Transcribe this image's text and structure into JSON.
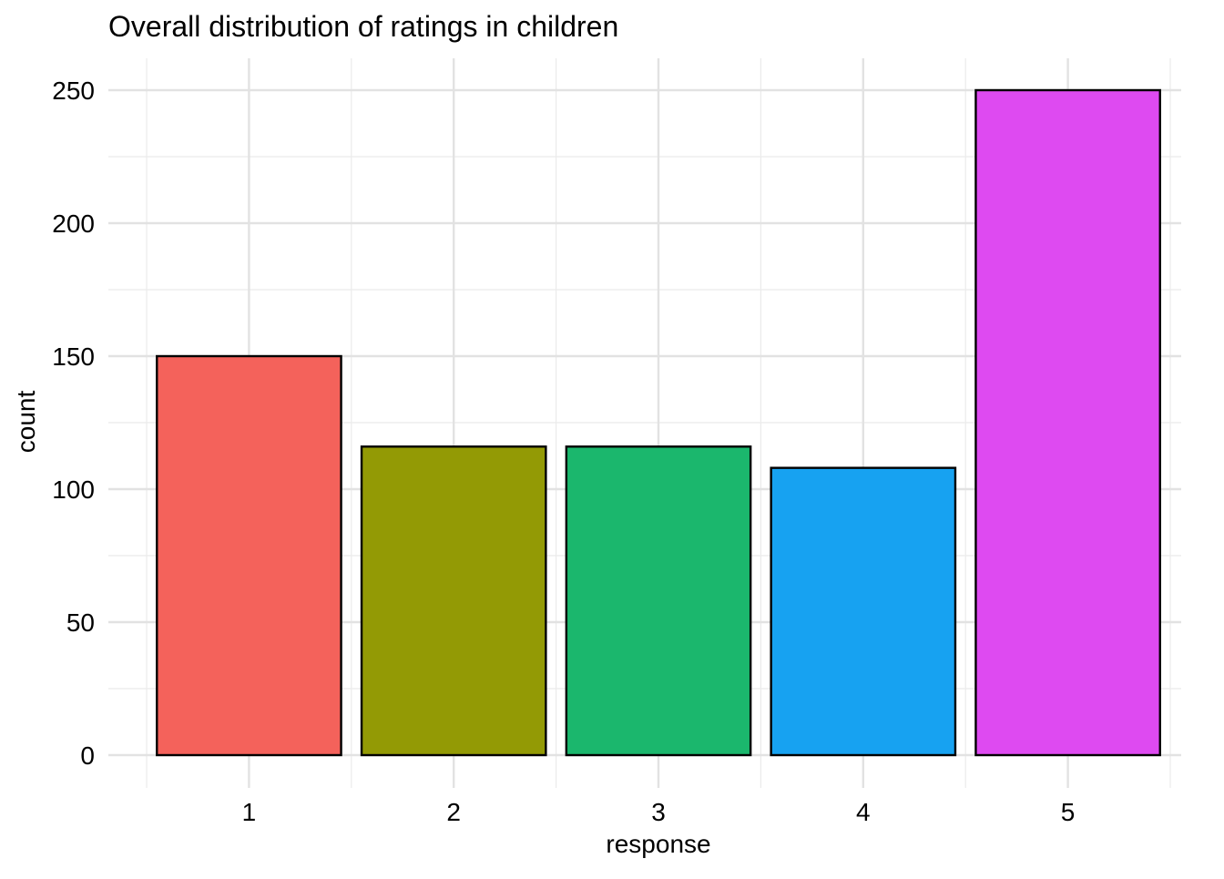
{
  "chart_data": {
    "type": "bar",
    "title": "Overall distribution of ratings in children",
    "xlabel": "response",
    "ylabel": "count",
    "categories": [
      "1",
      "2",
      "3",
      "4",
      "5"
    ],
    "values": [
      150,
      116,
      116,
      108,
      250
    ],
    "colors": [
      "#F4625B",
      "#939A05",
      "#1BB76D",
      "#17A2F1",
      "#DE4AF1"
    ],
    "ylim": [
      0,
      262
    ],
    "yticks": [
      0,
      50,
      100,
      150,
      200,
      250
    ],
    "ytick_labels": [
      "0",
      "50",
      "100",
      "150",
      "200",
      "250"
    ],
    "grid": true,
    "legend": "none"
  }
}
